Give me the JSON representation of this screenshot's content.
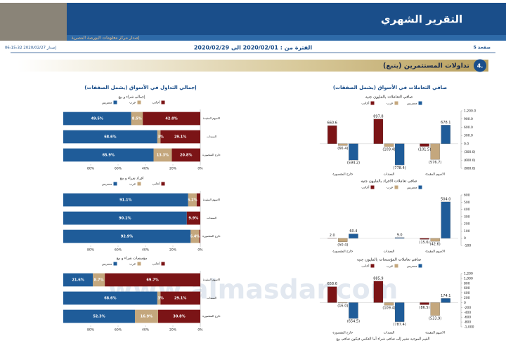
{
  "header": {
    "title": "التقرير الشهري",
    "subtitle": "إصدار مركز معلومات البورصة المصرية",
    "page": "صفحة 5",
    "period": "الفترة من : 2020/02/01 الى 2020/02/29",
    "issued": "إصدار 2020/02/27 06:15:32"
  },
  "section": {
    "number": "4.",
    "title": "تداولات المستثمرين (يتبع)"
  },
  "right_title": "صافي التعاملات في الأسواق (يشمل الصفقات)",
  "left_title": "إجمالي التداول في الأسواق (يشمل الصفقات)",
  "footnote": "القيم الموجبة تشير إلى صافي شراء أما العكس فيكون صافي بيع",
  "watermark": "www.almasdar.com",
  "chart_data": [
    {
      "type": "bar",
      "title": "صافي التعاملات بالمليون جنيه",
      "categories": [
        "الاسهم المقيدة",
        "السندات",
        "خارج المقصورة"
      ],
      "series": [
        {
          "name": "مصريين",
          "color": "#1f5c99",
          "values": [
            678.1,
            -778.4,
            -594.2
          ],
          "value_labels": [
            "678.1",
            "(778.4)",
            "(594.2)"
          ]
        },
        {
          "name": "عرب",
          "color": "#c4a77d",
          "values": [
            -576.7,
            -109.4,
            -66.4
          ],
          "value_labels": [
            "(576.7)",
            "(109.4)",
            "(66.4)"
          ]
        },
        {
          "name": "أجانب",
          "color": "#7b1416",
          "values": [
            -101.5,
            897.8,
            660.6
          ],
          "value_labels": [
            "(101.5)",
            "897.8",
            "660.6"
          ]
        }
      ],
      "ylim": [
        -900,
        1200
      ],
      "yticks": [
        {
          "value": 1200,
          "label": "1,200.0"
        },
        {
          "value": 900,
          "label": "900.0"
        },
        {
          "value": 600,
          "label": "600.0"
        },
        {
          "value": 300,
          "label": "300.0"
        },
        {
          "value": 0,
          "label": "0.0"
        },
        {
          "value": -300,
          "label": "(300.0)"
        },
        {
          "value": -600,
          "label": "(600.0)"
        },
        {
          "value": -900,
          "label": "(900.0)"
        }
      ]
    },
    {
      "type": "bar",
      "title": "صافي تعاملات الافراد بالمليون جنيه",
      "categories": [
        "الاسهم المقيدة",
        "السندات",
        "خارج المقصورة"
      ],
      "series": [
        {
          "name": "مصريين",
          "color": "#1f5c99",
          "values": [
            504.0,
            9.0,
            60.4
          ],
          "value_labels": [
            "504.0",
            "9.0",
            "60.4"
          ]
        },
        {
          "name": "عرب",
          "color": "#c4a77d",
          "values": [
            -42.6,
            null,
            -50.4
          ],
          "value_labels": [
            "(42.6)",
            null,
            "(50.4)"
          ]
        },
        {
          "name": "أجانب",
          "color": "#7b1416",
          "values": [
            -15.6,
            null,
            2.0
          ],
          "value_labels": [
            "(15.6)",
            null,
            "2.0"
          ]
        }
      ],
      "ylim": [
        -100,
        600
      ],
      "yticks": [
        600,
        500,
        400,
        300,
        200,
        100,
        0,
        -100
      ]
    },
    {
      "type": "bar",
      "title": "صافي تعاملات المؤسسات بالمليون جنيه",
      "categories": [
        "الاسهم المقيدة",
        "السندات",
        "خارج المقصورة"
      ],
      "series": [
        {
          "name": "مصريين",
          "color": "#1f5c99",
          "values": [
            174.1,
            -787.4,
            -654.5
          ],
          "value_labels": [
            "174.1",
            "(787.4)",
            "(654.5)"
          ]
        },
        {
          "name": "عرب",
          "color": "#c4a77d",
          "values": [
            -533.9,
            -109.4,
            -16.0
          ],
          "value_labels": [
            "(533.9)",
            "(109.4)",
            "(16.0)"
          ]
        },
        {
          "name": "أجانب",
          "color": "#7b1416",
          "values": [
            -86.5,
            885.9,
            658.6
          ],
          "value_labels": [
            "(86.5)",
            "885.9",
            "658.6"
          ]
        }
      ],
      "ylim": [
        -1000,
        1200
      ],
      "yticks": [
        {
          "value": 1200,
          "label": "1,200"
        },
        {
          "value": 1000,
          "label": "1,000"
        },
        800,
        600,
        400,
        200,
        0,
        -200,
        -400,
        -600,
        -800,
        {
          "value": -1000,
          "label": "-1,000"
        }
      ]
    },
    {
      "type": "stacked_barh",
      "title": "إجمالي شراء و بيع",
      "categories": [
        "الاسهم المقيدة",
        "السندات",
        "خارج المقصورة"
      ],
      "series": [
        {
          "name": "أجانب",
          "color": "#7b1416",
          "values": [
            42.0,
            29.1,
            20.8
          ],
          "value_labels": [
            "42.0%",
            "29.1%",
            "20.8%"
          ]
        },
        {
          "name": "عرب",
          "color": "#c4a77d",
          "values": [
            8.5,
            2.3,
            13.3
          ],
          "value_labels": [
            "8.5%",
            "2.3%",
            "13.3%"
          ]
        },
        {
          "name": "مصريين",
          "color": "#1f5c99",
          "values": [
            49.5,
            68.6,
            65.9
          ],
          "value_labels": [
            "49.5%",
            "68.6%",
            "65.9%"
          ]
        }
      ],
      "xlim": [
        0,
        100
      ],
      "x_reversed": true,
      "xticks": [
        {
          "value": 0,
          "label": "0%"
        },
        {
          "value": 20,
          "label": "20%"
        },
        {
          "value": 40,
          "label": "40%"
        },
        {
          "value": 60,
          "label": "60%"
        },
        {
          "value": 80,
          "label": "80%"
        }
      ]
    },
    {
      "type": "stacked_barh",
      "title": "افراد شراء و بيع",
      "categories": [
        "الاسهم المقيدة",
        "السندات",
        "خارج المقصورة"
      ],
      "series": [
        {
          "name": "أجانب",
          "color": "#7b1416",
          "values": [
            2.7,
            9.9,
            0.7
          ],
          "value_labels": [
            null,
            "9.9%",
            null
          ]
        },
        {
          "name": "عرب",
          "color": "#c4a77d",
          "values": [
            6.2,
            0.0,
            6.4
          ],
          "value_labels": [
            "6.2%",
            null,
            "6.4%"
          ]
        },
        {
          "name": "مصريين",
          "color": "#1f5c99",
          "values": [
            91.1,
            90.1,
            92.9
          ],
          "value_labels": [
            "91.1%",
            "90.1%",
            "92.9%"
          ]
        }
      ],
      "xlim": [
        0,
        100
      ],
      "x_reversed": true,
      "xticks": [
        {
          "value": 0,
          "label": "0%"
        },
        {
          "value": 20,
          "label": "20%"
        },
        {
          "value": 40,
          "label": "40%"
        },
        {
          "value": 60,
          "label": "60%"
        },
        {
          "value": 80,
          "label": "80%"
        }
      ]
    },
    {
      "type": "stacked_barh",
      "title": "مؤسسات شراء و بيع",
      "categories": [
        "الاسهم المقيدة",
        "السندات",
        "خارج المقصورة"
      ],
      "series": [
        {
          "name": "أجانب",
          "color": "#7b1416",
          "values": [
            69.7,
            29.1,
            30.8
          ],
          "value_labels": [
            "69.7%",
            "29.1%",
            "30.8%"
          ]
        },
        {
          "name": "عرب",
          "color": "#c4a77d",
          "values": [
            8.7,
            2.3,
            16.9
          ],
          "value_labels": [
            "8.7%",
            "2.3%",
            "16.9%"
          ]
        },
        {
          "name": "مصريين",
          "color": "#1f5c99",
          "values": [
            21.6,
            68.6,
            52.3
          ],
          "value_labels": [
            "21.6%",
            "68.6%",
            "52.3%"
          ]
        }
      ],
      "xlim": [
        0,
        100
      ],
      "x_reversed": true,
      "xticks": [
        {
          "value": 0,
          "label": "0%"
        },
        {
          "value": 20,
          "label": "20%"
        },
        {
          "value": 40,
          "label": "40%"
        },
        {
          "value": 60,
          "label": "60%"
        },
        {
          "value": 80,
          "label": "80%"
        }
      ]
    }
  ]
}
